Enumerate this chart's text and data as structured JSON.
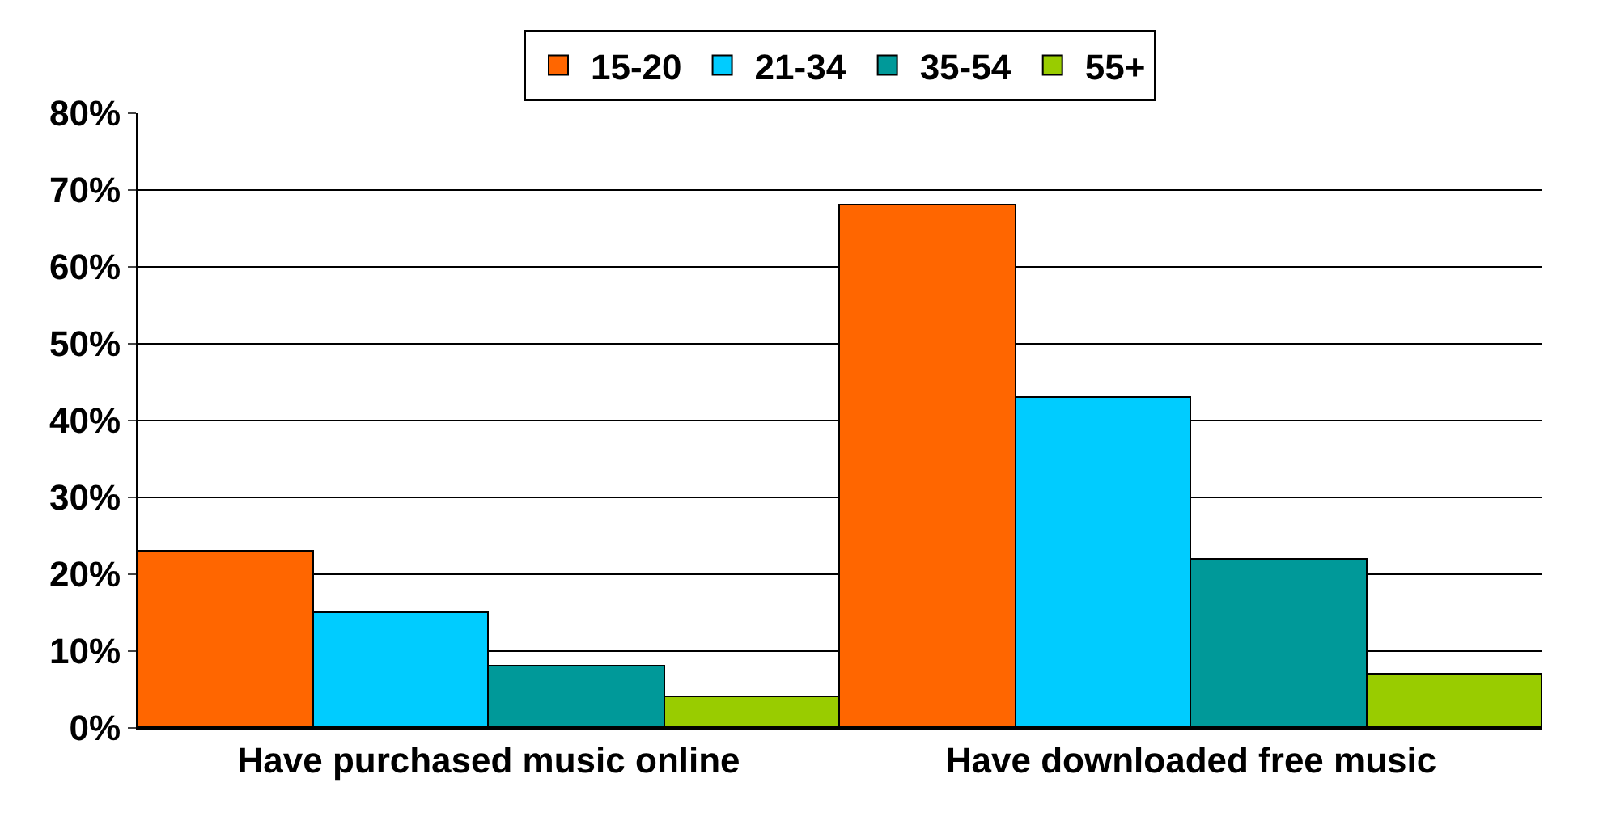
{
  "chart_data": {
    "type": "bar",
    "categories": [
      "Have purchased music online",
      "Have downloaded free music"
    ],
    "series": [
      {
        "name": "15-20",
        "color": "#ff6600",
        "values": [
          23,
          68
        ]
      },
      {
        "name": "21-34",
        "color": "#00ccff",
        "values": [
          15,
          43
        ]
      },
      {
        "name": "35-54",
        "color": "#009999",
        "values": [
          8,
          22
        ]
      },
      {
        "name": "55+",
        "color": "#99cc00",
        "values": [
          4,
          7
        ]
      }
    ],
    "ylim": [
      0,
      80
    ],
    "yticks": [
      {
        "value": 0,
        "label": "0%"
      },
      {
        "value": 10,
        "label": "10%"
      },
      {
        "value": 20,
        "label": "20%"
      },
      {
        "value": 30,
        "label": "30%"
      },
      {
        "value": 40,
        "label": "40%"
      },
      {
        "value": 50,
        "label": "50%"
      },
      {
        "value": 60,
        "label": "60%"
      },
      {
        "value": 70,
        "label": "70%"
      },
      {
        "value": 80,
        "label": "80%"
      }
    ],
    "grid": "y",
    "legend": "top"
  }
}
